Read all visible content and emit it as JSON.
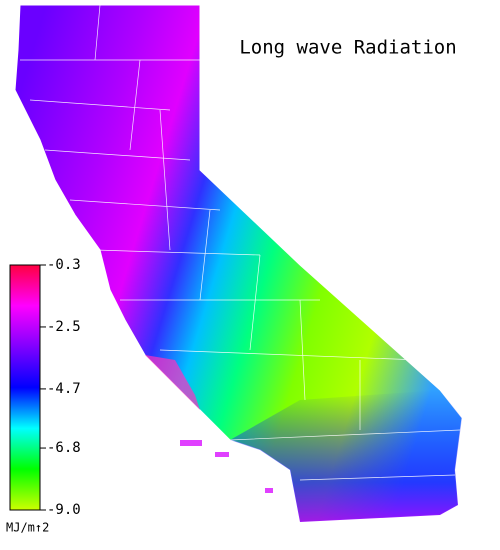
{
  "map": {
    "title": "Long wave Radiation",
    "colorbar": {
      "ticks": [
        -0.3,
        -2.5,
        -4.7,
        -6.8,
        {
          "value": -9,
          "label": "-9.0"
        }
      ],
      "clim": [
        -9,
        -0.3
      ],
      "colors": [
        "#ccff00",
        "#00ff00",
        "#00ffff",
        "#0000ff",
        "#8000ff",
        "#ff00ff",
        "#ff0040"
      ],
      "unit": "MJ/m↑2"
    }
  }
}
